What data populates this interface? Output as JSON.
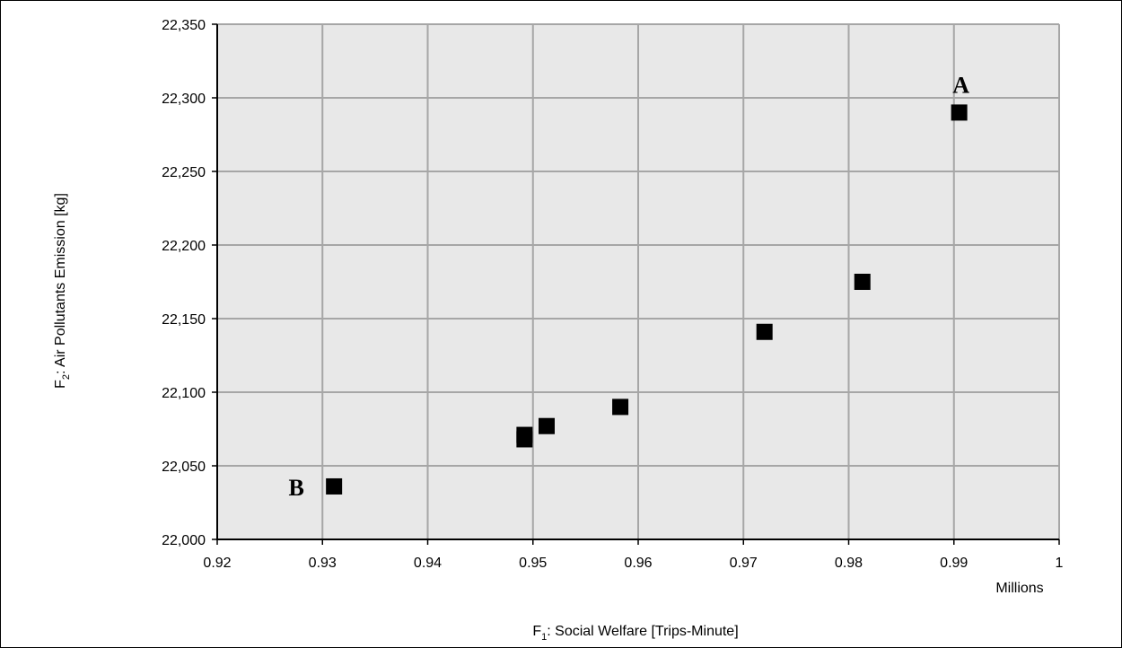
{
  "chart_data": {
    "type": "scatter",
    "xlabel": {
      "prefix": "F",
      "sub": "1",
      "text": ": Social Welfare [Trips-Minute]"
    },
    "ylabel": {
      "prefix": "F",
      "sub": "2",
      "text": ": Air Pollutants Emission [kg]"
    },
    "x_units_label": "Millions",
    "xlim": [
      0.92,
      1.0
    ],
    "ylim": [
      22000,
      22350
    ],
    "x_ticks": [
      0.92,
      0.93,
      0.94,
      0.95,
      0.96,
      0.97,
      0.98,
      0.99,
      1.0
    ],
    "x_tick_labels": [
      "0.92",
      "0.93",
      "0.94",
      "0.95",
      "0.96",
      "0.97",
      "0.98",
      "0.99",
      "1"
    ],
    "y_ticks": [
      22000,
      22050,
      22100,
      22150,
      22200,
      22250,
      22300,
      22350
    ],
    "y_tick_labels": [
      "22,000",
      "22,050",
      "22,100",
      "22,150",
      "22,200",
      "22,250",
      "22,300",
      "22,350"
    ],
    "grid": true,
    "marker": "square",
    "marker_color": "#000000",
    "plot_background": "#e8e8e8",
    "grid_color": "#a6a6a6",
    "points": [
      {
        "x": 0.9311,
        "y": 22036
      },
      {
        "x": 0.9492,
        "y": 22068
      },
      {
        "x": 0.9492,
        "y": 22071
      },
      {
        "x": 0.9513,
        "y": 22077
      },
      {
        "x": 0.9583,
        "y": 22090
      },
      {
        "x": 0.972,
        "y": 22141
      },
      {
        "x": 0.9813,
        "y": 22175
      },
      {
        "x": 0.9905,
        "y": 22290
      }
    ],
    "annotations": [
      {
        "text": "A",
        "x": 0.9905,
        "y": 22290
      },
      {
        "text": "B",
        "x": 0.9311,
        "y": 22036
      }
    ]
  }
}
